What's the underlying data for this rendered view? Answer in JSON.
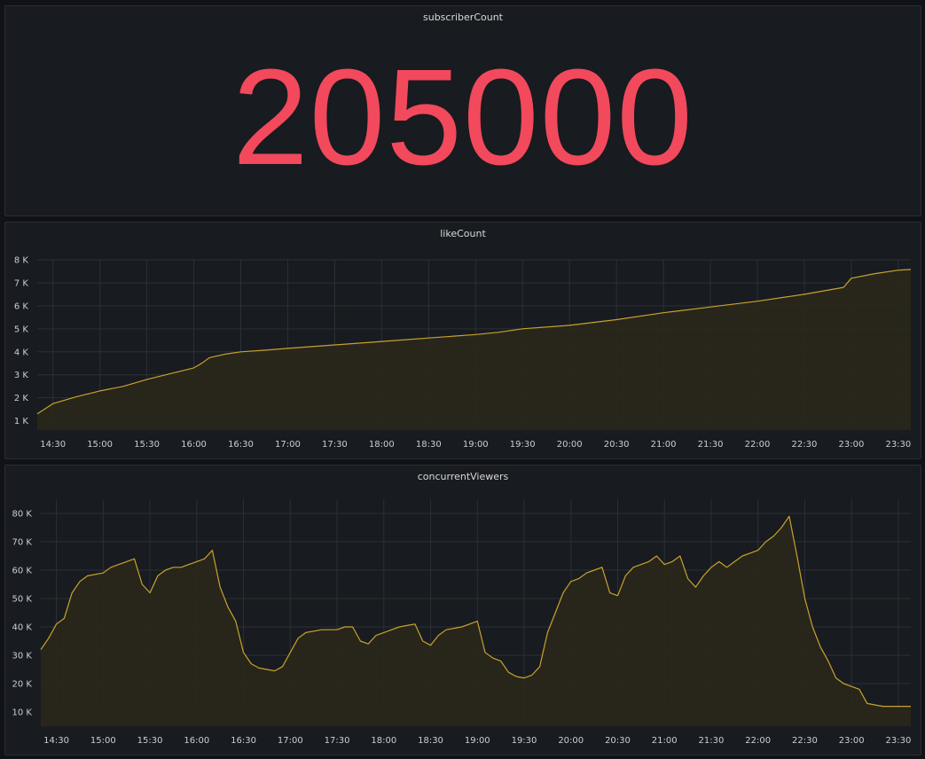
{
  "panels": {
    "subscriber": {
      "title": "subscriberCount",
      "value": "205000",
      "color": "#f2495c"
    },
    "like": {
      "title": "likeCount"
    },
    "viewers": {
      "title": "concurrentViewers"
    }
  },
  "theme": {
    "background": "#111217",
    "panel_bg": "#181b1f",
    "grid": "#2c3035",
    "line": "#c8a22d",
    "fill": "#2a281b"
  },
  "chart_data": [
    {
      "type": "area",
      "title": "likeCount",
      "x_start": "14:20",
      "x_end": "23:38",
      "xticks": [
        "14:30",
        "15:00",
        "15:30",
        "16:00",
        "16:30",
        "17:00",
        "17:30",
        "18:00",
        "18:30",
        "19:00",
        "19:30",
        "20:00",
        "20:30",
        "21:00",
        "21:30",
        "22:00",
        "22:30",
        "23:00",
        "23:30"
      ],
      "yticks": [
        "1 K",
        "2 K",
        "3 K",
        "4 K",
        "5 K",
        "6 K",
        "7 K",
        "8 K"
      ],
      "ylim": [
        600,
        8000
      ],
      "series": [
        {
          "name": "likeCount",
          "x": [
            "14:20",
            "14:30",
            "14:45",
            "15:00",
            "15:15",
            "15:30",
            "15:45",
            "16:00",
            "16:05",
            "16:10",
            "16:20",
            "16:30",
            "16:45",
            "17:00",
            "17:30",
            "18:00",
            "18:30",
            "19:00",
            "19:15",
            "19:30",
            "20:00",
            "20:30",
            "21:00",
            "21:30",
            "22:00",
            "22:30",
            "22:55",
            "23:00",
            "23:15",
            "23:30",
            "23:38"
          ],
          "values": [
            1300,
            1750,
            2050,
            2300,
            2500,
            2800,
            3050,
            3300,
            3500,
            3750,
            3900,
            4000,
            4070,
            4150,
            4300,
            4450,
            4600,
            4750,
            4850,
            5000,
            5150,
            5400,
            5700,
            5950,
            6200,
            6500,
            6800,
            7200,
            7400,
            7550,
            7580
          ]
        }
      ]
    },
    {
      "type": "area",
      "title": "concurrentViewers",
      "x_start": "14:20",
      "x_end": "23:38",
      "xticks": [
        "14:30",
        "15:00",
        "15:30",
        "16:00",
        "16:30",
        "17:00",
        "17:30",
        "18:00",
        "18:30",
        "19:00",
        "19:30",
        "20:00",
        "20:30",
        "21:00",
        "21:30",
        "22:00",
        "22:30",
        "23:00",
        "23:30"
      ],
      "yticks": [
        "10 K",
        "20 K",
        "30 K",
        "40 K",
        "50 K",
        "60 K",
        "70 K",
        "80 K"
      ],
      "ylim": [
        5000,
        85000
      ],
      "series": [
        {
          "name": "concurrentViewers",
          "x": [
            "14:20",
            "14:25",
            "14:30",
            "14:35",
            "14:40",
            "14:45",
            "14:50",
            "15:00",
            "15:05",
            "15:10",
            "15:15",
            "15:20",
            "15:25",
            "15:30",
            "15:35",
            "15:40",
            "15:45",
            "15:50",
            "15:55",
            "16:00",
            "16:05",
            "16:10",
            "16:15",
            "16:20",
            "16:25",
            "16:30",
            "16:35",
            "16:40",
            "16:45",
            "16:50",
            "16:55",
            "17:00",
            "17:05",
            "17:10",
            "17:15",
            "17:20",
            "17:30",
            "17:35",
            "17:40",
            "17:45",
            "17:50",
            "17:55",
            "18:00",
            "18:05",
            "18:10",
            "18:15",
            "18:20",
            "18:25",
            "18:30",
            "18:35",
            "18:40",
            "18:45",
            "18:50",
            "18:55",
            "19:00",
            "19:05",
            "19:10",
            "19:15",
            "19:20",
            "19:25",
            "19:30",
            "19:35",
            "19:40",
            "19:45",
            "19:50",
            "19:55",
            "20:00",
            "20:05",
            "20:10",
            "20:15",
            "20:20",
            "20:25",
            "20:30",
            "20:35",
            "20:40",
            "20:45",
            "20:50",
            "20:55",
            "21:00",
            "21:05",
            "21:10",
            "21:15",
            "21:20",
            "21:25",
            "21:30",
            "21:35",
            "21:40",
            "21:45",
            "21:50",
            "21:55",
            "22:00",
            "22:05",
            "22:10",
            "22:15",
            "22:20",
            "22:25",
            "22:30",
            "22:35",
            "22:40",
            "22:45",
            "22:50",
            "22:55",
            "23:00",
            "23:05",
            "23:10",
            "23:15",
            "23:20",
            "23:25",
            "23:30",
            "23:35",
            "23:38"
          ],
          "values": [
            32000,
            36000,
            41000,
            43000,
            52000,
            56000,
            58000,
            59000,
            61000,
            62000,
            63000,
            64000,
            55000,
            52000,
            58000,
            60000,
            61000,
            61000,
            62000,
            63000,
            64000,
            67000,
            54000,
            47000,
            42000,
            31000,
            27000,
            25500,
            25000,
            24500,
            26000,
            31000,
            36000,
            38000,
            38500,
            39000,
            39000,
            40000,
            40000,
            35000,
            34000,
            37000,
            38000,
            39000,
            40000,
            40500,
            41000,
            35000,
            33500,
            37000,
            39000,
            39500,
            40000,
            41000,
            42000,
            31000,
            29000,
            28000,
            24000,
            22500,
            22000,
            23000,
            26000,
            38000,
            45000,
            52000,
            56000,
            57000,
            59000,
            60000,
            61000,
            52000,
            51000,
            58000,
            61000,
            62000,
            63000,
            65000,
            62000,
            63000,
            65000,
            57000,
            54000,
            58000,
            61000,
            63000,
            61000,
            63000,
            65000,
            66000,
            67000,
            70000,
            72000,
            75000,
            79000,
            65000,
            50000,
            40000,
            33000,
            28000,
            22000,
            20000,
            19000,
            18000,
            13000,
            12500,
            12000,
            12000,
            12000,
            12000,
            12000
          ]
        }
      ]
    }
  ]
}
